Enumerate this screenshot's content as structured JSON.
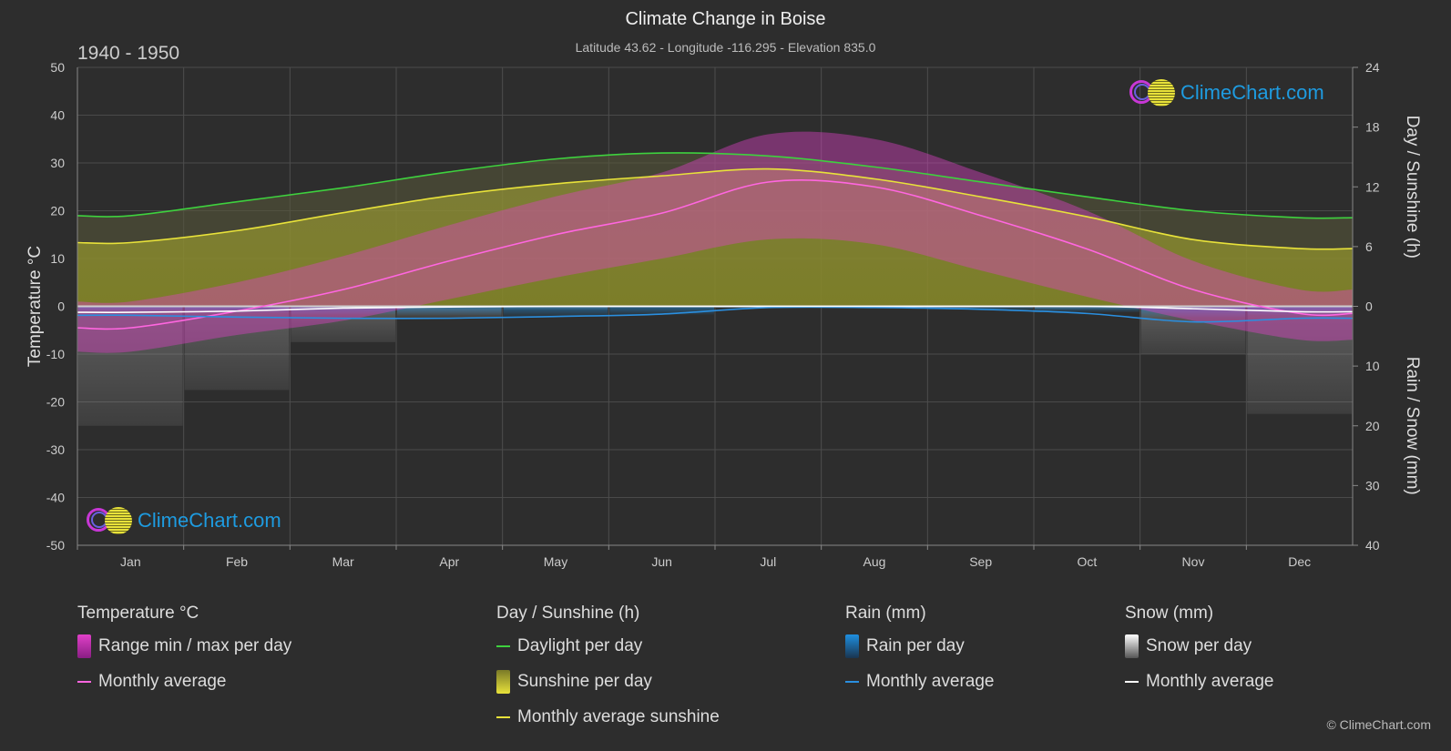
{
  "header": {
    "title": "Climate Change in Boise",
    "subtitle": "Latitude 43.62 - Longitude -116.295 - Elevation 835.0",
    "period": "1940 - 1950"
  },
  "copyright": "© ClimeChart.com",
  "logo_text": "ClimeChart.com",
  "chart_data": {
    "type": "area",
    "categories": [
      "Jan",
      "Feb",
      "Mar",
      "Apr",
      "May",
      "Jun",
      "Jul",
      "Aug",
      "Sep",
      "Oct",
      "Nov",
      "Dec"
    ],
    "axes": {
      "left": {
        "label": "Temperature °C",
        "min": -50,
        "max": 50,
        "ticks": [
          50,
          40,
          30,
          20,
          10,
          0,
          -10,
          -20,
          -30,
          -40,
          -50
        ]
      },
      "right_top": {
        "label": "Day / Sunshine (h)",
        "min": 0,
        "max": 24,
        "ticks": [
          24,
          18,
          12,
          6,
          0
        ]
      },
      "right_bottom": {
        "label": "Rain / Snow (mm)",
        "min": 0,
        "max": 40,
        "ticks": [
          0,
          10,
          20,
          30,
          40
        ]
      }
    },
    "grid": true,
    "series": [
      {
        "name": "Monthly average",
        "group": "Temperature °C",
        "color": "#ff66e0",
        "values": [
          -4.5,
          -1.0,
          3.5,
          9.5,
          15.0,
          19.5,
          26.0,
          25.0,
          19.0,
          12.0,
          3.5,
          -1.5
        ]
      },
      {
        "name": "Range min / max per day",
        "group": "Temperature °C",
        "color": "#e040c8",
        "min": [
          -9.5,
          -6.0,
          -3.0,
          1.5,
          6.0,
          10.0,
          14.0,
          13.0,
          7.5,
          2.0,
          -3.0,
          -7.0
        ],
        "max": [
          1.0,
          5.0,
          10.5,
          17.0,
          23.0,
          28.0,
          36.0,
          35.0,
          28.0,
          20.0,
          9.5,
          3.5
        ]
      },
      {
        "name": "Daylight per day",
        "group": "Day / Sunshine (h)",
        "color": "#3ed13e",
        "values": [
          9.1,
          10.5,
          11.9,
          13.5,
          14.8,
          15.4,
          15.1,
          14.0,
          12.5,
          11.0,
          9.6,
          8.9
        ]
      },
      {
        "name": "Sunshine per day",
        "group": "Day / Sunshine (h)",
        "color": "#c8c832",
        "values": [
          6.4,
          7.6,
          9.4,
          11.1,
          12.3,
          13.1,
          13.8,
          12.8,
          11.0,
          9.0,
          6.7,
          5.8
        ]
      },
      {
        "name": "Monthly average sunshine",
        "group": "Day / Sunshine (h)",
        "color": "#e8e23a",
        "values": [
          6.4,
          7.6,
          9.4,
          11.1,
          12.3,
          13.1,
          13.8,
          12.8,
          11.0,
          9.0,
          6.7,
          5.8
        ]
      },
      {
        "name": "Rain per day",
        "group": "Rain (mm)",
        "color": "#1e8fe0",
        "values": [
          1.0,
          1.2,
          1.4,
          1.5,
          1.7,
          1.4,
          0.3,
          0.3,
          0.6,
          1.0,
          1.8,
          1.5
        ]
      },
      {
        "name": "Monthly average",
        "group": "Rain (mm)",
        "color": "#2a8fe0",
        "values": [
          1.5,
          1.8,
          2.0,
          2.0,
          1.7,
          1.3,
          0.2,
          0.2,
          0.5,
          1.2,
          2.6,
          2.0
        ]
      },
      {
        "name": "Snow per day",
        "group": "Snow (mm)",
        "color": "#dddddd",
        "values": [
          20,
          14,
          6,
          2,
          0.5,
          0,
          0,
          0,
          0,
          0.5,
          8,
          18
        ]
      },
      {
        "name": "Monthly average",
        "group": "Snow (mm)",
        "color": "#ffffff",
        "values": [
          1.0,
          0.8,
          0.3,
          0.1,
          0,
          0,
          0,
          0,
          0,
          0,
          0.4,
          0.9
        ]
      }
    ]
  },
  "legend": [
    {
      "head": "Temperature °C",
      "items": [
        {
          "label": "Range min / max per day",
          "swatch": "box",
          "color": "#e040c8"
        },
        {
          "label": "Monthly average",
          "swatch": "line",
          "color": "#ff66e0"
        }
      ]
    },
    {
      "head": "Day / Sunshine (h)",
      "items": [
        {
          "label": "Daylight per day",
          "swatch": "line",
          "color": "#3ed13e"
        },
        {
          "label": "Sunshine per day",
          "swatch": "box",
          "color": "#c8c832"
        },
        {
          "label": "Monthly average sunshine",
          "swatch": "line",
          "color": "#e8e23a"
        }
      ]
    },
    {
      "head": "Rain (mm)",
      "items": [
        {
          "label": "Rain per day",
          "swatch": "box",
          "color": "#1e8fe0"
        },
        {
          "label": "Monthly average",
          "swatch": "line",
          "color": "#2a8fe0"
        }
      ]
    },
    {
      "head": "Snow (mm)",
      "items": [
        {
          "label": "Snow per day",
          "swatch": "box",
          "color": "#dddddd"
        },
        {
          "label": "Monthly average",
          "swatch": "line",
          "color": "#ffffff"
        }
      ]
    }
  ]
}
